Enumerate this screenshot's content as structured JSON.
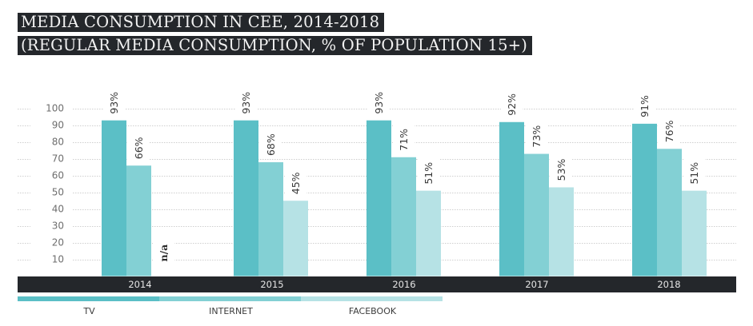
{
  "chart_data": {
    "type": "bar",
    "title": "MEDIA CONSUMPTION IN CEE, 2014-2018",
    "subtitle": "(REGULAR MEDIA CONSUMPTION, % OF POPULATION 15+)",
    "xlabel": "",
    "ylabel": "",
    "ylim": [
      0,
      100
    ],
    "yticks": [
      10,
      20,
      30,
      40,
      50,
      60,
      70,
      80,
      90,
      100
    ],
    "grid": true,
    "legend_position": "bottom-left",
    "categories": [
      "2014",
      "2015",
      "2016",
      "2017",
      "2018"
    ],
    "series": [
      {
        "name": "TV",
        "color": "#5bbfc6",
        "values": [
          93,
          93,
          93,
          92,
          91
        ],
        "labels": [
          "93%",
          "93%",
          "93%",
          "92%",
          "91%"
        ]
      },
      {
        "name": "INTERNET",
        "color": "#83d0d4",
        "values": [
          66,
          68,
          71,
          73,
          76
        ],
        "labels": [
          "66%",
          "68%",
          "71%",
          "73%",
          "76%"
        ]
      },
      {
        "name": "FACEBOOK",
        "color": "#b6e2e5",
        "values": [
          null,
          45,
          51,
          53,
          51
        ],
        "labels": [
          "n/a",
          "45%",
          "51%",
          "53%",
          "51%"
        ]
      }
    ]
  },
  "colors": {
    "title_bg": "#24272b",
    "axis_band": "#24272b",
    "grid": "#cfcfcf"
  }
}
